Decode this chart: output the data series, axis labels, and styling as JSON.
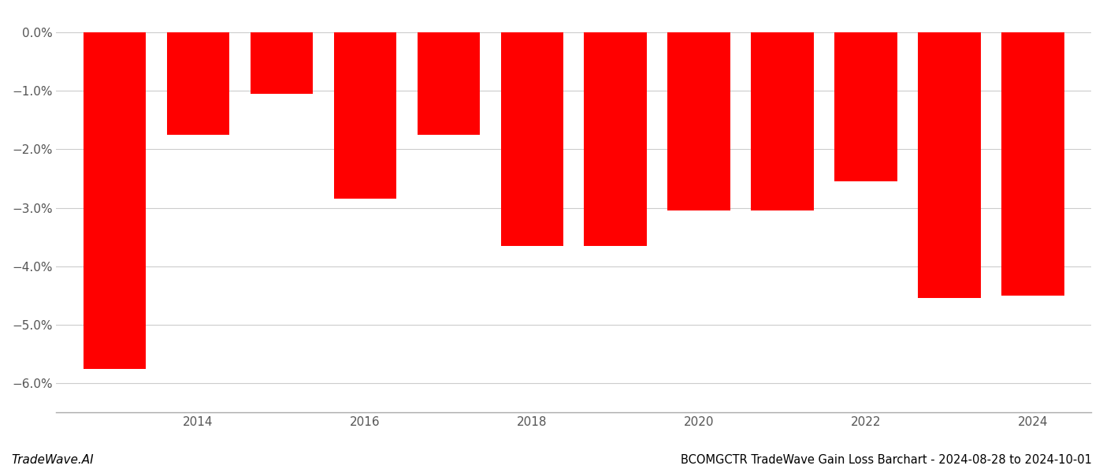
{
  "years": [
    2013,
    2014,
    2015,
    2016,
    2017,
    2018,
    2019,
    2020,
    2021,
    2022,
    2023,
    2024
  ],
  "values": [
    -5.75,
    -1.75,
    -1.05,
    -2.85,
    -1.75,
    -3.65,
    -3.65,
    -3.05,
    -3.05,
    -2.55,
    -4.55,
    -4.5
  ],
  "bar_color": "#ff0000",
  "title": "BCOMGCTR TradeWave Gain Loss Barchart - 2024-08-28 to 2024-10-01",
  "watermark": "TradeWave.AI",
  "ylim_min": -6.5,
  "ylim_max": 0.35,
  "ytick_values": [
    0.0,
    -1.0,
    -2.0,
    -3.0,
    -4.0,
    -5.0,
    -6.0
  ],
  "xtick_years": [
    2014,
    2016,
    2018,
    2020,
    2022,
    2024
  ],
  "xlim_min": 2012.3,
  "xlim_max": 2024.7,
  "bar_width": 0.75,
  "background_color": "#ffffff",
  "grid_color": "#cccccc",
  "spine_color": "#aaaaaa",
  "tick_label_color": "#555555",
  "title_fontsize": 10.5,
  "watermark_fontsize": 11,
  "tick_fontsize": 11
}
